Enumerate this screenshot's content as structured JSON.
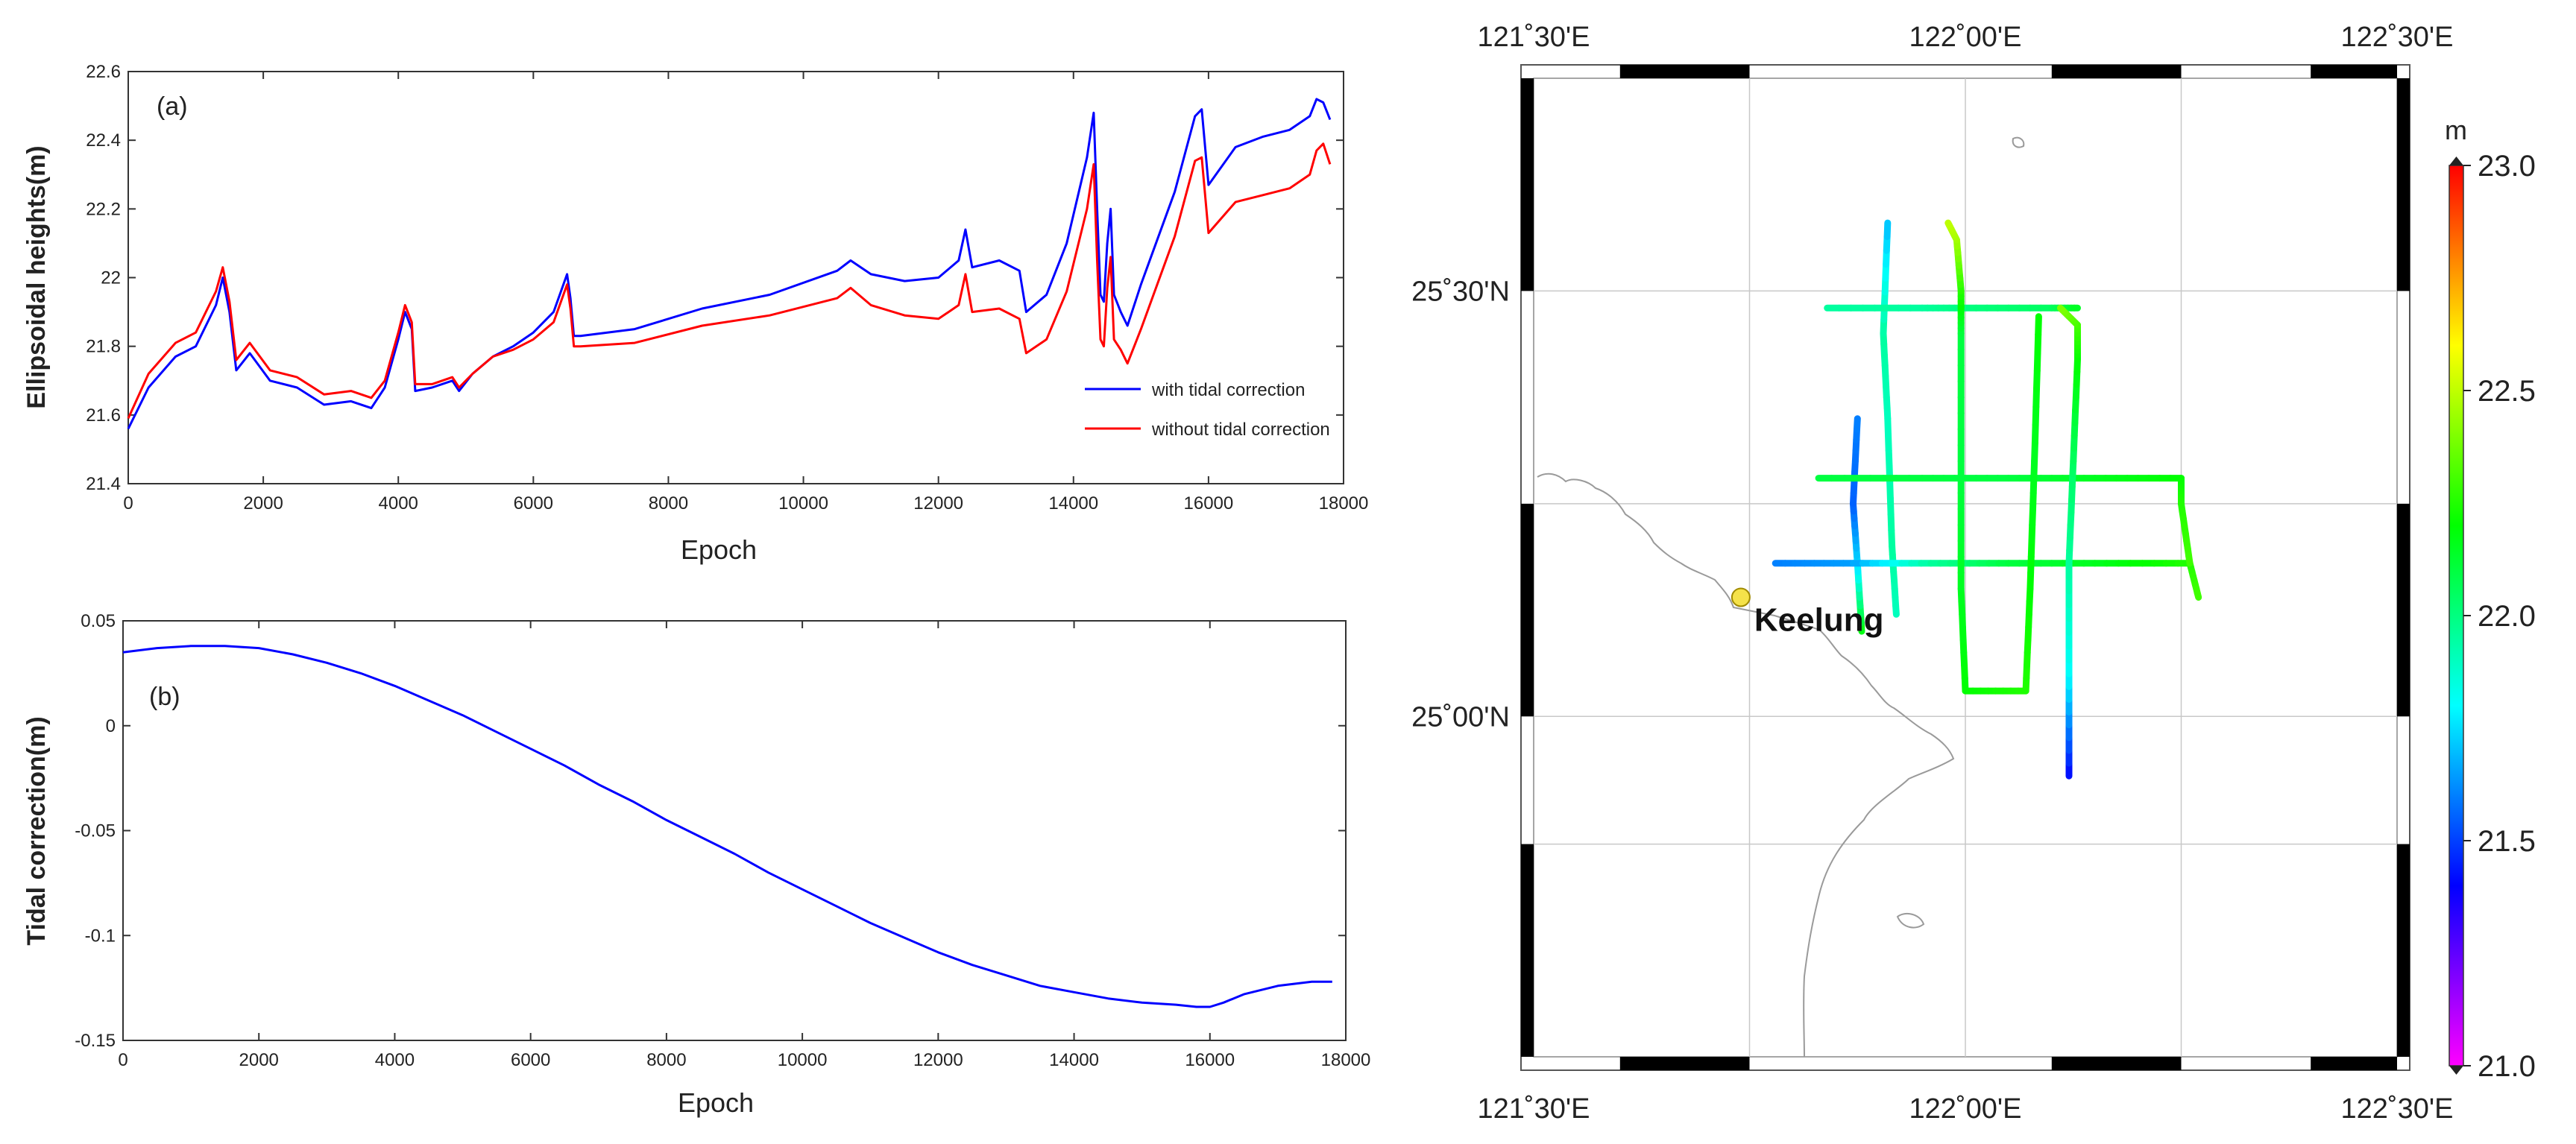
{
  "chart_data": [
    {
      "type": "line",
      "panel_label": "(a)",
      "xlabel": "Epoch",
      "ylabel": "Ellipsoidal heights(m)",
      "xlim": [
        0,
        18000
      ],
      "ylim": [
        21.4,
        22.6
      ],
      "xticks": [
        0,
        2000,
        4000,
        6000,
        8000,
        10000,
        12000,
        14000,
        16000,
        18000
      ],
      "yticks": [
        21.4,
        21.6,
        21.8,
        22,
        22.2,
        22.4,
        22.6
      ],
      "ytick_labels": [
        "21.4",
        "21.6",
        "21.8",
        "22",
        "22.2",
        "22.4",
        "22.6"
      ],
      "legend_position": "lower-right",
      "series": [
        {
          "name": "with tidal correction",
          "color": "#0000ff",
          "x": [
            0,
            300,
            700,
            1000,
            1300,
            1400,
            1500,
            1600,
            1800,
            2100,
            2500,
            2900,
            3300,
            3600,
            3800,
            4000,
            4100,
            4200,
            4250,
            4500,
            4800,
            4900,
            5100,
            5400,
            5700,
            6000,
            6300,
            6500,
            6550,
            6600,
            6700,
            7500,
            8500,
            9500,
            10500,
            10700,
            11000,
            11500,
            12000,
            12300,
            12400,
            12500,
            12900,
            13200,
            13300,
            13600,
            13900,
            14200,
            14300,
            14350,
            14400,
            14450,
            14500,
            14550,
            14600,
            14700,
            14800,
            15000,
            15500,
            15800,
            15900,
            16000,
            16400,
            16800,
            17200,
            17500,
            17600,
            17700,
            17800
          ],
          "y": [
            21.56,
            21.68,
            21.77,
            21.8,
            21.92,
            22.0,
            21.9,
            21.73,
            21.78,
            21.7,
            21.68,
            21.63,
            21.64,
            21.62,
            21.68,
            21.82,
            21.9,
            21.85,
            21.67,
            21.68,
            21.7,
            21.67,
            21.72,
            21.77,
            21.8,
            21.84,
            21.9,
            22.01,
            21.94,
            21.83,
            21.83,
            21.85,
            21.91,
            21.95,
            22.02,
            22.05,
            22.01,
            21.99,
            22.0,
            22.05,
            22.14,
            22.03,
            22.05,
            22.02,
            21.9,
            21.95,
            22.1,
            22.35,
            22.48,
            22.2,
            21.95,
            21.93,
            22.1,
            22.2,
            21.95,
            21.9,
            21.86,
            21.98,
            22.25,
            22.47,
            22.49,
            22.27,
            22.38,
            22.41,
            22.43,
            22.47,
            22.52,
            22.51,
            22.46
          ]
        },
        {
          "name": "without tidal correction",
          "color": "#ff0000",
          "x": [
            0,
            300,
            700,
            1000,
            1300,
            1400,
            1500,
            1600,
            1800,
            2100,
            2500,
            2900,
            3300,
            3600,
            3800,
            4000,
            4100,
            4200,
            4250,
            4500,
            4800,
            4900,
            5100,
            5400,
            5700,
            6000,
            6300,
            6500,
            6550,
            6600,
            6700,
            7500,
            8500,
            9500,
            10500,
            10700,
            11000,
            11500,
            12000,
            12300,
            12400,
            12500,
            12900,
            13200,
            13300,
            13600,
            13900,
            14200,
            14300,
            14350,
            14400,
            14450,
            14500,
            14550,
            14600,
            14700,
            14800,
            15000,
            15500,
            15800,
            15900,
            16000,
            16400,
            16800,
            17200,
            17500,
            17600,
            17700,
            17800
          ],
          "y": [
            21.59,
            21.72,
            21.81,
            21.84,
            21.96,
            22.03,
            21.93,
            21.76,
            21.81,
            21.73,
            21.71,
            21.66,
            21.67,
            21.65,
            21.7,
            21.84,
            21.92,
            21.87,
            21.69,
            21.69,
            21.71,
            21.68,
            21.72,
            21.77,
            21.79,
            21.82,
            21.87,
            21.98,
            21.91,
            21.8,
            21.8,
            21.81,
            21.86,
            21.89,
            21.94,
            21.97,
            21.92,
            21.89,
            21.88,
            21.92,
            22.01,
            21.9,
            21.91,
            21.88,
            21.78,
            21.82,
            21.96,
            22.2,
            22.33,
            22.05,
            21.82,
            21.8,
            21.97,
            22.06,
            21.82,
            21.79,
            21.75,
            21.85,
            22.12,
            22.34,
            22.35,
            22.13,
            22.22,
            22.24,
            22.26,
            22.3,
            22.37,
            22.39,
            22.33
          ]
        }
      ]
    },
    {
      "type": "line",
      "panel_label": "(b)",
      "xlabel": "Epoch",
      "ylabel": "Tidal correction(m)",
      "xlim": [
        0,
        18000
      ],
      "ylim": [
        -0.15,
        0.05
      ],
      "xticks": [
        0,
        2000,
        4000,
        6000,
        8000,
        10000,
        12000,
        14000,
        16000,
        18000
      ],
      "yticks": [
        -0.15,
        -0.1,
        -0.05,
        0,
        0.05
      ],
      "ytick_labels": [
        "-0.15",
        "-0.1",
        "-0.05",
        "0",
        "0.05"
      ],
      "series": [
        {
          "color": "#0000ff",
          "x": [
            0,
            500,
            1000,
            1500,
            2000,
            2500,
            3000,
            3500,
            4000,
            4500,
            5000,
            5500,
            6000,
            6500,
            7000,
            7500,
            8000,
            8500,
            9000,
            9500,
            10000,
            10500,
            11000,
            11500,
            12000,
            12500,
            13000,
            13500,
            14000,
            14500,
            15000,
            15500,
            15800,
            16000,
            16200,
            16500,
            17000,
            17500,
            17800
          ],
          "y": [
            0.035,
            0.037,
            0.038,
            0.038,
            0.037,
            0.034,
            0.03,
            0.025,
            0.019,
            0.012,
            0.005,
            -0.003,
            -0.011,
            -0.019,
            -0.028,
            -0.036,
            -0.045,
            -0.053,
            -0.061,
            -0.07,
            -0.078,
            -0.086,
            -0.094,
            -0.101,
            -0.108,
            -0.114,
            -0.119,
            -0.124,
            -0.127,
            -0.13,
            -0.132,
            -0.133,
            -0.134,
            -0.134,
            -0.132,
            -0.128,
            -0.124,
            -0.122,
            -0.122
          ]
        }
      ]
    },
    {
      "type": "scatter",
      "subtype": "map",
      "xlim": [
        121.5,
        122.5
      ],
      "ylim": [
        24.6,
        25.75
      ],
      "xticks_top": [
        "121˚30'E",
        "122˚00'E",
        "122˚30'E"
      ],
      "xticks_bottom": [
        "121˚30'E",
        "122˚00'E",
        "122˚30'E"
      ],
      "yticks": [
        "25˚30'N",
        "25˚00'N"
      ],
      "ytick_values": [
        25.5,
        25.0
      ],
      "place_label": "Keelung",
      "place_lon": 121.74,
      "place_lat": 25.14,
      "place_color": "#f5e24a",
      "colorbar": {
        "unit": "m",
        "min": 21.0,
        "max": 23.0,
        "ticks": [
          "23.0",
          "22.5",
          "22.0",
          "21.5",
          "21.0"
        ],
        "tick_values": [
          23.0,
          22.5,
          22.0,
          21.5,
          21.0
        ],
        "colors": [
          "#ff00ff",
          "#0000ff",
          "#00ffff",
          "#00ff00",
          "#ffff00",
          "#ff0000"
        ]
      },
      "tracks": [
        [
          [
            121.92,
            25.12,
            21.9
          ],
          [
            121.915,
            25.2,
            21.95
          ],
          [
            121.91,
            25.35,
            21.9
          ],
          [
            121.905,
            25.45,
            21.95
          ],
          [
            121.91,
            25.58,
            21.7
          ]
        ],
        [
          [
            121.88,
            25.1,
            22.2
          ],
          [
            121.875,
            25.18,
            21.75
          ],
          [
            121.87,
            25.25,
            21.55
          ],
          [
            121.875,
            25.35,
            21.6
          ]
        ],
        [
          [
            121.78,
            25.18,
            21.6
          ],
          [
            121.87,
            25.18,
            21.65
          ],
          [
            121.96,
            25.18,
            21.95
          ],
          [
            122.05,
            25.18,
            22.1
          ],
          [
            122.15,
            25.18,
            22.15
          ],
          [
            122.26,
            25.18,
            22.25
          ],
          [
            122.27,
            25.14,
            22.3
          ]
        ],
        [
          [
            121.83,
            25.28,
            22.1
          ],
          [
            121.95,
            25.28,
            22.1
          ],
          [
            122.05,
            25.28,
            22.1
          ],
          [
            122.15,
            25.28,
            22.15
          ],
          [
            122.25,
            25.28,
            22.2
          ],
          [
            122.25,
            25.25,
            22.25
          ],
          [
            122.26,
            25.18,
            22.3
          ]
        ],
        [
          [
            121.84,
            25.48,
            21.95
          ],
          [
            121.95,
            25.48,
            21.95
          ],
          [
            122.0,
            25.48,
            22.0
          ],
          [
            122.1,
            25.48,
            22.05
          ],
          [
            122.13,
            25.48,
            22.15
          ]
        ],
        [
          [
            122.0,
            25.03,
            22.2
          ],
          [
            121.995,
            25.15,
            22.15
          ],
          [
            121.995,
            25.3,
            22.1
          ],
          [
            121.995,
            25.45,
            22.1
          ],
          [
            121.995,
            25.5,
            22.25
          ],
          [
            121.99,
            25.56,
            22.45
          ],
          [
            121.98,
            25.58,
            22.5
          ]
        ],
        [
          [
            122.0,
            25.03,
            22.2
          ],
          [
            122.07,
            25.03,
            22.25
          ],
          [
            122.075,
            25.15,
            22.2
          ],
          [
            122.08,
            25.3,
            22.15
          ],
          [
            122.085,
            25.47,
            22.2
          ]
        ],
        [
          [
            122.12,
            24.93,
            21.4
          ],
          [
            122.12,
            25.05,
            21.8
          ],
          [
            122.12,
            25.18,
            21.95
          ],
          [
            122.125,
            25.3,
            22.05
          ],
          [
            122.13,
            25.42,
            22.2
          ],
          [
            122.13,
            25.46,
            22.3
          ],
          [
            122.11,
            25.48,
            22.4
          ]
        ]
      ]
    }
  ]
}
